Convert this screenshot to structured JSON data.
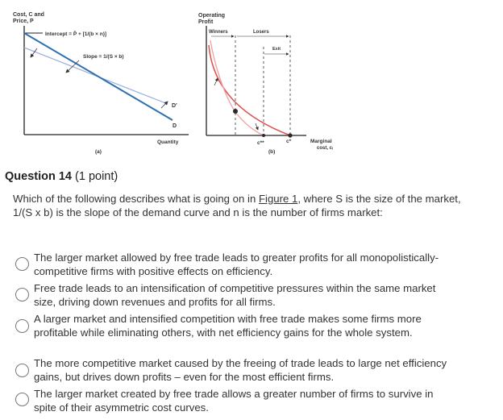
{
  "figure": {
    "panel_a": {
      "y_axis_label_1": "Cost, C and",
      "y_axis_label_2": "Price, P",
      "intercept_label": "Intercept = P̄ + [1/(b × n)]",
      "slope_label": "Slope = 1/(S × b)",
      "curve_d_prime": "D′",
      "curve_d": "D",
      "x_axis_label": "Quantity",
      "panel_label": "(a)"
    },
    "panel_b": {
      "y_axis_label_1": "Operating",
      "y_axis_label_2": "Profit",
      "winners_label": "Winners",
      "losers_label": "Losers",
      "exit_label": "Exit",
      "c_double_star": "c**",
      "c_star": "c*",
      "x_axis_label_1": "Marginal",
      "x_axis_label_2": "cost, cᵢ",
      "panel_label": "(b)"
    },
    "colors": {
      "demand_d": "#2e6fb3",
      "demand_d_prime": "#9fb4dd",
      "profit_old": "#e05050",
      "profit_new": "#f2a0a0",
      "point": "#2a2a2a"
    }
  },
  "question": {
    "title": "Question 14",
    "points": "(1 point)",
    "prompt_before": "Which of the following describes what is going on in ",
    "figure_link": "Figure 1",
    "prompt_after": ", where S is the size of the market, 1/(S x b) is the slope of the demand curve and n is the number of firms market:",
    "options": [
      "The larger market allowed by free trade leads to greater profits for all monopolistically-competitive firms with positive effects on efficiency.",
      "Free trade leads to an intensification of competitive pressures within the same market size, driving down revenues and profits for all firms.",
      "A larger market and intensified competition with free trade makes some firms more profitable while eliminating others, with net efficiency gains for the whole system.",
      "The more competitive market caused by the freeing of trade leads to large net efficiency gains, but drives down profits – even for the most efficient firms.",
      "The larger market created by free trade allows a greater number of firms to survive in spite of their asymmetric cost curves."
    ]
  }
}
